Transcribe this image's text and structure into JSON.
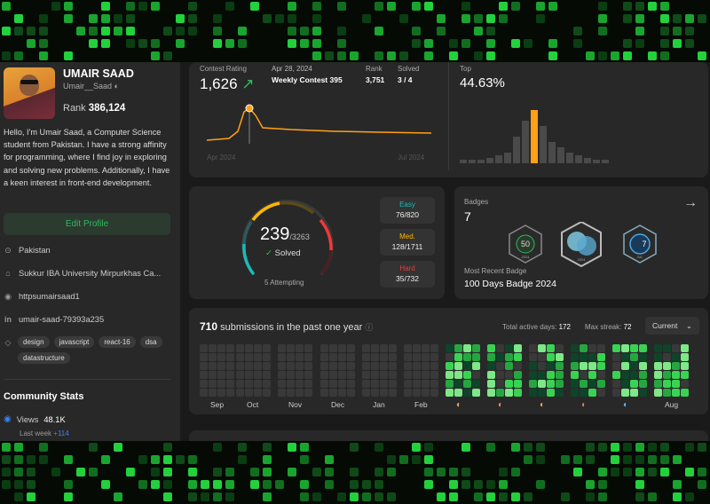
{
  "profile": {
    "name": "UMAIR SAAD",
    "handle": "Umair__Saad",
    "rank_label": "Rank",
    "rank_value": "386,124",
    "bio": "Hello, I'm Umair Saad, a Computer Science student from Pakistan. I have a strong affinity for programming, where I find joy in exploring and solving new problems. Additionally, I have a keen interest in front-end development.",
    "edit_label": "Edit Profile",
    "location": "Pakistan",
    "university": "Sukkur IBA University Mirpurkhas Ca...",
    "github": "httpsumairsaad1",
    "linkedin": "umair-saad-79393a235",
    "tags": [
      "design",
      "javascript",
      "react-16",
      "dsa",
      "datastructure"
    ]
  },
  "community": {
    "title": "Community Stats",
    "views_label": "Views",
    "views_value": "48.1K",
    "last_week_label": "Last week",
    "last_week_value": "+114"
  },
  "contest": {
    "rating_label": "Contest Rating",
    "rating_value": "1,626",
    "date": "Apr 28, 2024",
    "contest_name": "Weekly Contest 395",
    "rank_label": "Rank",
    "rank_value": "3,751",
    "solved_label": "Solved",
    "solved_value": "3 / 4",
    "top_label": "Top",
    "top_value": "44.63%",
    "axis_start": "Apr 2024",
    "axis_end": "Jul 2024",
    "histogram": [
      1,
      1,
      1,
      2,
      3,
      4,
      10,
      16,
      20,
      14,
      8,
      6,
      4,
      3,
      2,
      1,
      1
    ]
  },
  "solved": {
    "count": "239",
    "total": "/3263",
    "solved_label": "Solved",
    "attempting": "5 Attempting",
    "easy_label": "Easy",
    "easy_value": "76/820",
    "medium_label": "Med.",
    "medium_value": "128/1711",
    "hard_label": "Hard",
    "hard_value": "35/732",
    "easy_fraction": 0.093,
    "medium_fraction": 0.075,
    "hard_fraction": 0.048
  },
  "badges": {
    "title": "Badges",
    "count": "7",
    "recent_label": "Most Recent Badge",
    "recent_name": "100 Days Badge 2024",
    "badge1_text": "50",
    "badge2_text": "",
    "badge3_text": "7",
    "badge1_sub": "2024",
    "badge2_sub": "2024",
    "badge3_sub": "JUL"
  },
  "activity": {
    "count": "710",
    "title": "submissions in the past one year",
    "active_label": "Total active days:",
    "active_value": "172",
    "streak_label": "Max streak:",
    "streak_value": "72",
    "dropdown": "Current",
    "months": [
      "Sep",
      "Oct",
      "Nov",
      "Dec",
      "Jan",
      "Feb",
      "Mar",
      "Apr",
      "May",
      "Jun",
      "Jul",
      "Aug"
    ]
  },
  "colors": {
    "accent_green": "#2cbb5d",
    "easy": "#1cbaba",
    "medium": "#ffb700",
    "hard": "#f63737",
    "contest_line": "#ffa116"
  }
}
